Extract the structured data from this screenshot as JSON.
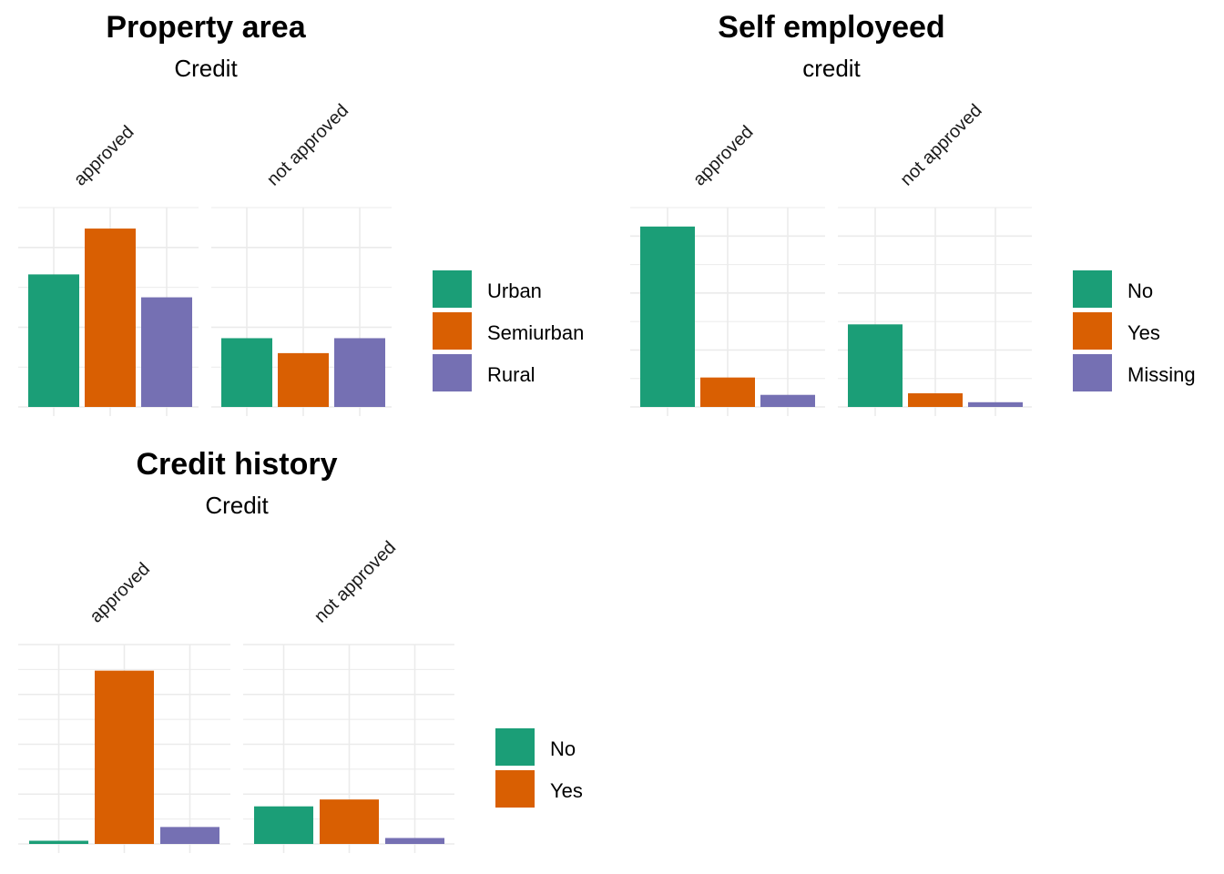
{
  "colors": {
    "Urban": "#1b9e77",
    "Semiurban": "#d95f02",
    "Rural": "#7570b3",
    "grid": "#ebebeb"
  },
  "chart_data": [
    {
      "type": "bar",
      "title": "Property area",
      "subtitle": "Credit",
      "facets": [
        "approved",
        "not approved"
      ],
      "legend": [
        "Urban",
        "Semiurban",
        "Rural"
      ],
      "legend_colors": [
        "#1b9e77",
        "#d95f02",
        "#7570b3"
      ],
      "legend_position": "right",
      "grid": true,
      "ylim": [
        0,
        190
      ],
      "series": [
        {
          "name": "Urban",
          "values": [
            133,
            69
          ]
        },
        {
          "name": "Semiurban",
          "values": [
            179,
            54
          ]
        },
        {
          "name": "Rural",
          "values": [
            110,
            69
          ]
        }
      ]
    },
    {
      "type": "bar",
      "title": "Self employeed",
      "subtitle": "credit",
      "facets": [
        "approved",
        "not approved"
      ],
      "legend": [
        "No",
        "Yes",
        "Missing"
      ],
      "legend_colors": [
        "#1b9e77",
        "#d95f02",
        "#7570b3"
      ],
      "legend_position": "right",
      "grid": true,
      "ylim": [
        0,
        360
      ],
      "series": [
        {
          "name": "No",
          "values": [
            343,
            157
          ]
        },
        {
          "name": "Yes",
          "values": [
            56,
            26
          ]
        },
        {
          "name": "Missing",
          "values": [
            23,
            9
          ]
        }
      ]
    },
    {
      "type": "bar",
      "title": "Credit history",
      "subtitle": "Credit",
      "facets": [
        "approved",
        "not approved"
      ],
      "legend": [
        "No",
        "Yes"
      ],
      "legend_colors": [
        "#1b9e77",
        "#d95f02"
      ],
      "legend_position": "right",
      "grid": true,
      "ylim": [
        0,
        415
      ],
      "series": [
        {
          "name": "No",
          "values": [
            7,
            82
          ]
        },
        {
          "name": "Yes",
          "values": [
            378,
            97
          ]
        },
        {
          "name": "",
          "values": [
            37,
            13
          ]
        }
      ]
    }
  ]
}
